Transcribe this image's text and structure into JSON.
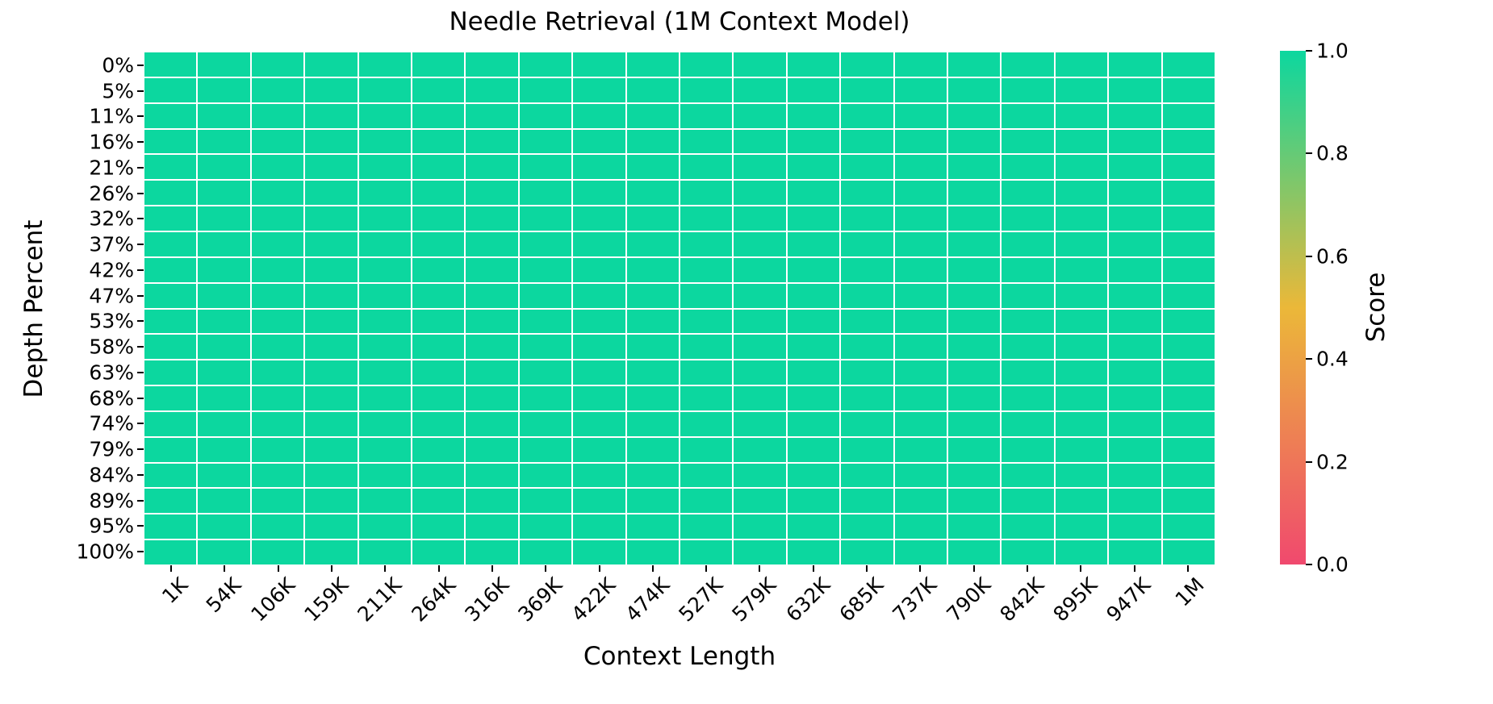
{
  "title": "Needle Retrieval (1M Context Model)",
  "chart_data": {
    "type": "heatmap",
    "title": "Needle Retrieval (1M Context Model)",
    "xlabel": "Context Length",
    "ylabel": "Depth Percent",
    "x_categories": [
      "1K",
      "54K",
      "106K",
      "159K",
      "211K",
      "264K",
      "316K",
      "369K",
      "422K",
      "474K",
      "527K",
      "579K",
      "632K",
      "685K",
      "737K",
      "790K",
      "842K",
      "895K",
      "947K",
      "1M"
    ],
    "y_categories": [
      "0%",
      "5%",
      "11%",
      "16%",
      "21%",
      "26%",
      "32%",
      "37%",
      "42%",
      "47%",
      "53%",
      "58%",
      "63%",
      "68%",
      "74%",
      "79%",
      "84%",
      "89%",
      "95%",
      "100%"
    ],
    "values": [
      [
        1.0,
        1.0,
        1.0,
        1.0,
        1.0,
        1.0,
        1.0,
        1.0,
        1.0,
        1.0,
        1.0,
        1.0,
        1.0,
        1.0,
        1.0,
        1.0,
        1.0,
        1.0,
        1.0,
        1.0
      ],
      [
        1.0,
        1.0,
        1.0,
        1.0,
        1.0,
        1.0,
        1.0,
        1.0,
        1.0,
        1.0,
        1.0,
        1.0,
        1.0,
        1.0,
        1.0,
        1.0,
        1.0,
        1.0,
        1.0,
        1.0
      ],
      [
        1.0,
        1.0,
        1.0,
        1.0,
        1.0,
        1.0,
        1.0,
        1.0,
        1.0,
        1.0,
        1.0,
        1.0,
        1.0,
        1.0,
        1.0,
        1.0,
        1.0,
        1.0,
        1.0,
        1.0
      ],
      [
        1.0,
        1.0,
        1.0,
        1.0,
        1.0,
        1.0,
        1.0,
        1.0,
        1.0,
        1.0,
        1.0,
        1.0,
        1.0,
        1.0,
        1.0,
        1.0,
        1.0,
        1.0,
        1.0,
        1.0
      ],
      [
        1.0,
        1.0,
        1.0,
        1.0,
        1.0,
        1.0,
        1.0,
        1.0,
        1.0,
        1.0,
        1.0,
        1.0,
        1.0,
        1.0,
        1.0,
        1.0,
        1.0,
        1.0,
        1.0,
        1.0
      ],
      [
        1.0,
        1.0,
        1.0,
        1.0,
        1.0,
        1.0,
        1.0,
        1.0,
        1.0,
        1.0,
        1.0,
        1.0,
        1.0,
        1.0,
        1.0,
        1.0,
        1.0,
        1.0,
        1.0,
        1.0
      ],
      [
        1.0,
        1.0,
        1.0,
        1.0,
        1.0,
        1.0,
        1.0,
        1.0,
        1.0,
        1.0,
        1.0,
        1.0,
        1.0,
        1.0,
        1.0,
        1.0,
        1.0,
        1.0,
        1.0,
        1.0
      ],
      [
        1.0,
        1.0,
        1.0,
        1.0,
        1.0,
        1.0,
        1.0,
        1.0,
        1.0,
        1.0,
        1.0,
        1.0,
        1.0,
        1.0,
        1.0,
        1.0,
        1.0,
        1.0,
        1.0,
        1.0
      ],
      [
        1.0,
        1.0,
        1.0,
        1.0,
        1.0,
        1.0,
        1.0,
        1.0,
        1.0,
        1.0,
        1.0,
        1.0,
        1.0,
        1.0,
        1.0,
        1.0,
        1.0,
        1.0,
        1.0,
        1.0
      ],
      [
        1.0,
        1.0,
        1.0,
        1.0,
        1.0,
        1.0,
        1.0,
        1.0,
        1.0,
        1.0,
        1.0,
        1.0,
        1.0,
        1.0,
        1.0,
        1.0,
        1.0,
        1.0,
        1.0,
        1.0
      ],
      [
        1.0,
        1.0,
        1.0,
        1.0,
        1.0,
        1.0,
        1.0,
        1.0,
        1.0,
        1.0,
        1.0,
        1.0,
        1.0,
        1.0,
        1.0,
        1.0,
        1.0,
        1.0,
        1.0,
        1.0
      ],
      [
        1.0,
        1.0,
        1.0,
        1.0,
        1.0,
        1.0,
        1.0,
        1.0,
        1.0,
        1.0,
        1.0,
        1.0,
        1.0,
        1.0,
        1.0,
        1.0,
        1.0,
        1.0,
        1.0,
        1.0
      ],
      [
        1.0,
        1.0,
        1.0,
        1.0,
        1.0,
        1.0,
        1.0,
        1.0,
        1.0,
        1.0,
        1.0,
        1.0,
        1.0,
        1.0,
        1.0,
        1.0,
        1.0,
        1.0,
        1.0,
        1.0
      ],
      [
        1.0,
        1.0,
        1.0,
        1.0,
        1.0,
        1.0,
        1.0,
        1.0,
        1.0,
        1.0,
        1.0,
        1.0,
        1.0,
        1.0,
        1.0,
        1.0,
        1.0,
        1.0,
        1.0,
        1.0
      ],
      [
        1.0,
        1.0,
        1.0,
        1.0,
        1.0,
        1.0,
        1.0,
        1.0,
        1.0,
        1.0,
        1.0,
        1.0,
        1.0,
        1.0,
        1.0,
        1.0,
        1.0,
        1.0,
        1.0,
        1.0
      ],
      [
        1.0,
        1.0,
        1.0,
        1.0,
        1.0,
        1.0,
        1.0,
        1.0,
        1.0,
        1.0,
        1.0,
        1.0,
        1.0,
        1.0,
        1.0,
        1.0,
        1.0,
        1.0,
        1.0,
        1.0
      ],
      [
        1.0,
        1.0,
        1.0,
        1.0,
        1.0,
        1.0,
        1.0,
        1.0,
        1.0,
        1.0,
        1.0,
        1.0,
        1.0,
        1.0,
        1.0,
        1.0,
        1.0,
        1.0,
        1.0,
        1.0
      ],
      [
        1.0,
        1.0,
        1.0,
        1.0,
        1.0,
        1.0,
        1.0,
        1.0,
        1.0,
        1.0,
        1.0,
        1.0,
        1.0,
        1.0,
        1.0,
        1.0,
        1.0,
        1.0,
        1.0,
        1.0
      ],
      [
        1.0,
        1.0,
        1.0,
        1.0,
        1.0,
        1.0,
        1.0,
        1.0,
        1.0,
        1.0,
        1.0,
        1.0,
        1.0,
        1.0,
        1.0,
        1.0,
        1.0,
        1.0,
        1.0,
        1.0
      ],
      [
        1.0,
        1.0,
        1.0,
        1.0,
        1.0,
        1.0,
        1.0,
        1.0,
        1.0,
        1.0,
        1.0,
        1.0,
        1.0,
        1.0,
        1.0,
        1.0,
        1.0,
        1.0,
        1.0,
        1.0
      ]
    ],
    "uniform_score": 1.0,
    "grid": true,
    "colorbar": {
      "label": "Score",
      "tick_labels": [
        "1.0",
        "0.8",
        "0.6",
        "0.4",
        "0.2",
        "0.0"
      ],
      "tick_values": [
        1.0,
        0.8,
        0.6,
        0.4,
        0.2,
        0.0
      ],
      "min": 0.0,
      "max": 1.0,
      "position": "right",
      "color_low": "#F0496E",
      "color_mid": "#EBB839",
      "color_high": "#0CD79F"
    },
    "colors": {
      "cell_fill": "#0CD79F",
      "grid_line": "#FFFFFF",
      "text": "#000000",
      "background": "#FFFFFF"
    }
  }
}
